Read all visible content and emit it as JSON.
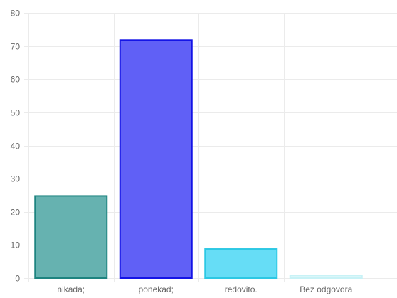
{
  "chart_data": {
    "type": "bar",
    "title": "",
    "xlabel": "",
    "ylabel": "",
    "categories": [
      "nikada;",
      "ponekad;",
      "redovito.",
      "Bez odgovora"
    ],
    "values": [
      25,
      72,
      9,
      1
    ],
    "ylim": [
      0,
      80
    ],
    "yticks": [
      "0",
      "10",
      "20",
      "30",
      "40",
      "50",
      "60",
      "70",
      "80"
    ],
    "grid": true,
    "legend": "none",
    "bar_fill_colors": [
      "#66b2b0",
      "#6060f6",
      "#66ddf6",
      "#e2f8fa"
    ],
    "bar_border_colors": [
      "#1e8480",
      "#1414e6",
      "#2dc8e4",
      "#c8f2f6"
    ],
    "grid_color": "#ebebeb",
    "axis_text_color": "#666666"
  }
}
